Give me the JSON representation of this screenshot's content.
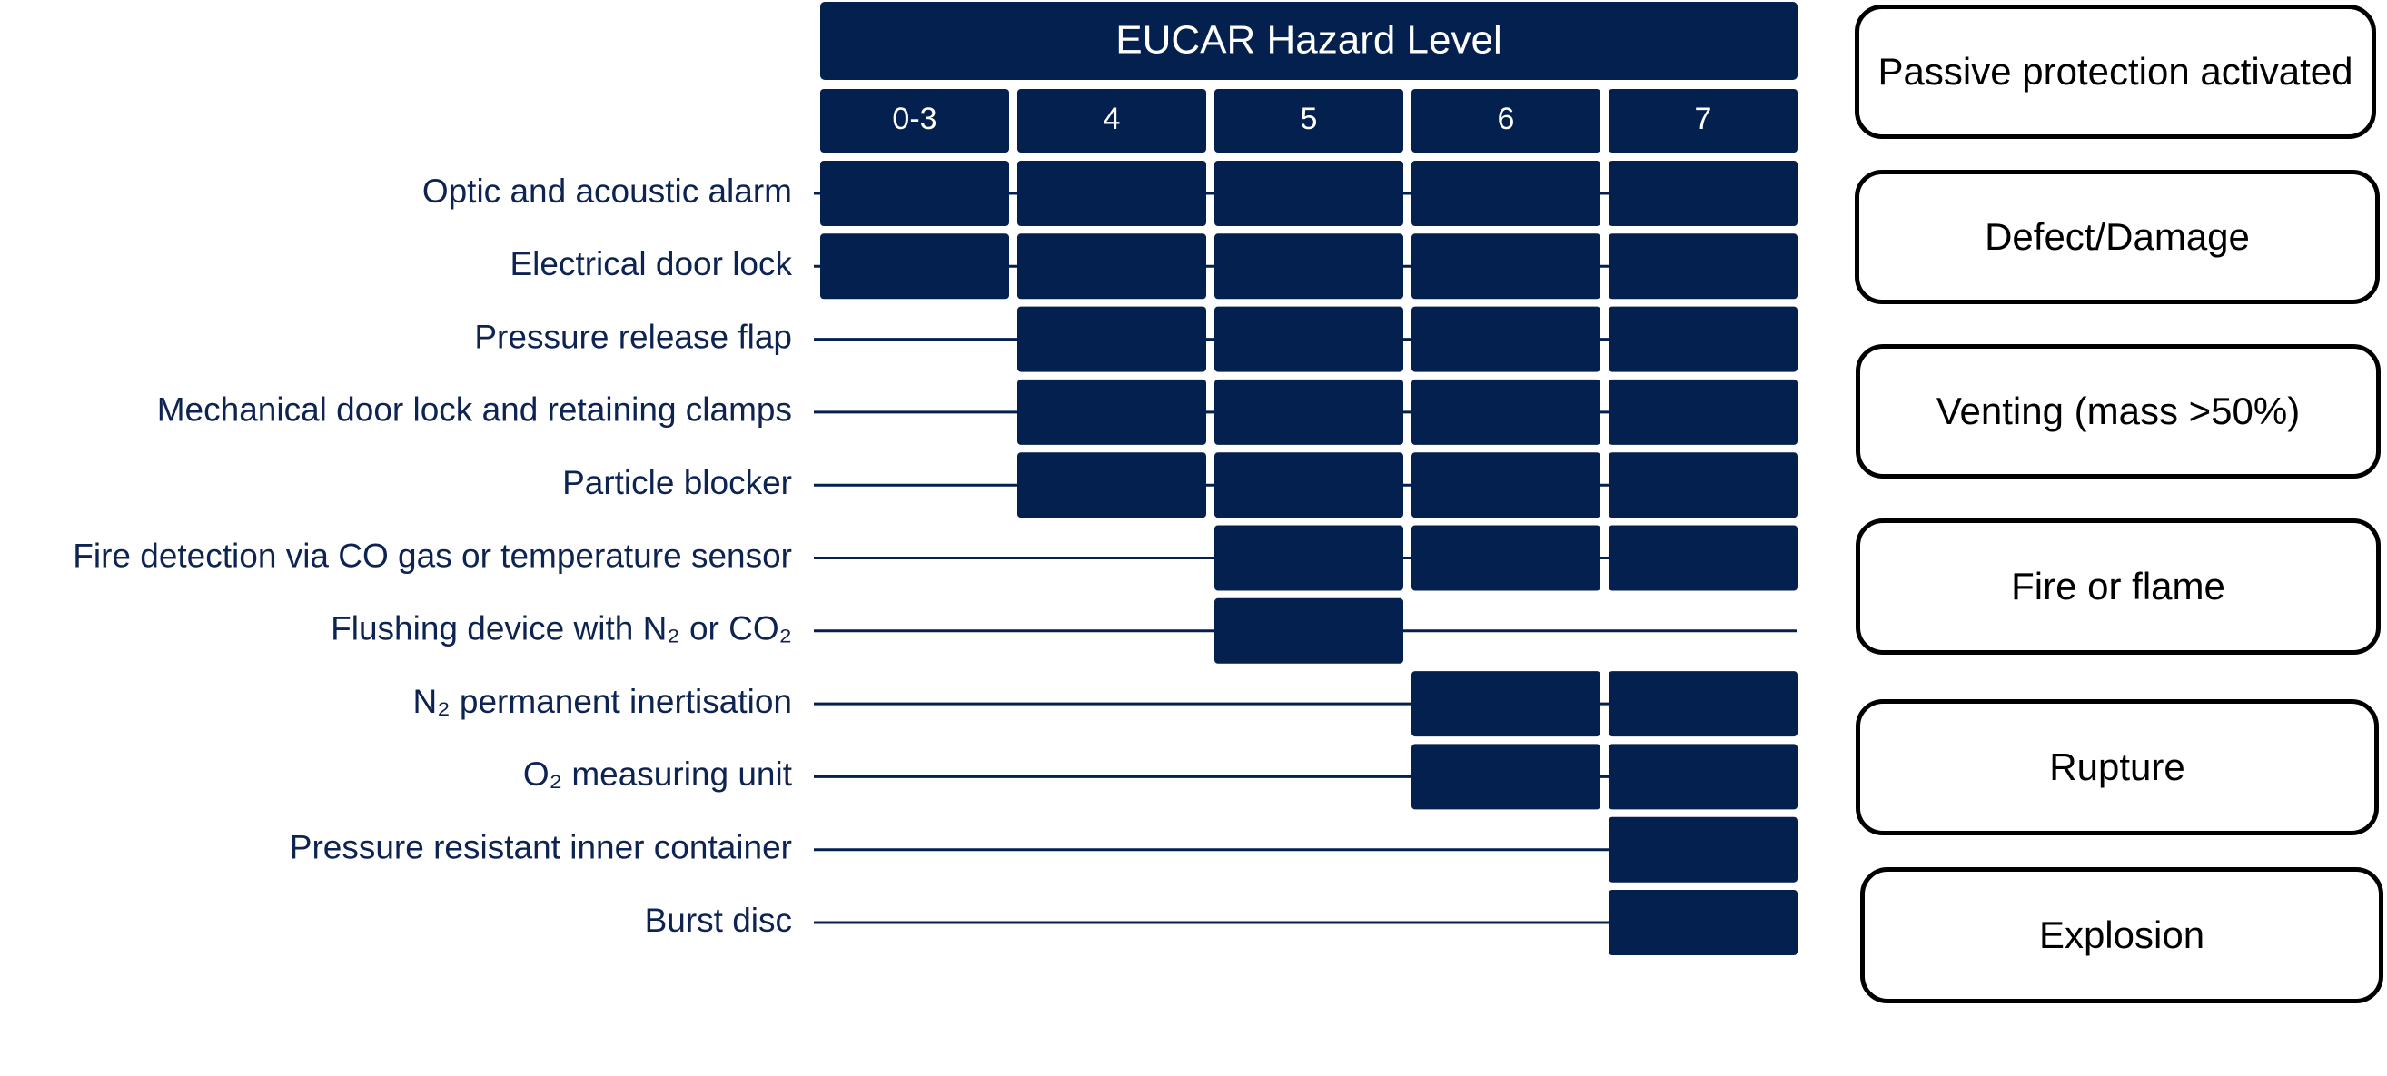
{
  "colors": {
    "navy": "#03204f",
    "label": "#0d2352"
  },
  "header": {
    "title": "EUCAR Hazard Level"
  },
  "levels": [
    "0-3",
    "4",
    "5",
    "6",
    "7"
  ],
  "rows": [
    {
      "label": "Optic and acoustic alarm",
      "cells": [
        1,
        1,
        1,
        1,
        1
      ]
    },
    {
      "label": "Electrical door lock",
      "cells": [
        1,
        1,
        1,
        1,
        1
      ]
    },
    {
      "label": "Pressure release flap",
      "cells": [
        0,
        1,
        1,
        1,
        1
      ]
    },
    {
      "label": "Mechanical door lock and retaining clamps",
      "cells": [
        0,
        1,
        1,
        1,
        1
      ]
    },
    {
      "label": "Particle blocker",
      "cells": [
        0,
        1,
        1,
        1,
        1
      ]
    },
    {
      "label": "Fire detection via CO gas or temperature sensor",
      "cells": [
        0,
        0,
        1,
        1,
        1
      ]
    },
    {
      "label": "Flushing device with N₂ or CO₂",
      "cells": [
        0,
        0,
        1,
        0,
        0
      ]
    },
    {
      "label": "N₂ permanent inertisation",
      "cells": [
        0,
        0,
        0,
        1,
        1
      ]
    },
    {
      "label": "O₂ measuring unit",
      "cells": [
        0,
        0,
        0,
        1,
        1
      ]
    },
    {
      "label": "Pressure resistant inner container",
      "cells": [
        0,
        0,
        0,
        0,
        1
      ]
    },
    {
      "label": "Burst disc",
      "cells": [
        0,
        0,
        0,
        0,
        1
      ]
    }
  ],
  "side_boxes": [
    "Passive protection activated",
    "Defect/Damage",
    "Venting (mass >50%)",
    "Fire or flame",
    "Rupture",
    "Explosion"
  ]
}
